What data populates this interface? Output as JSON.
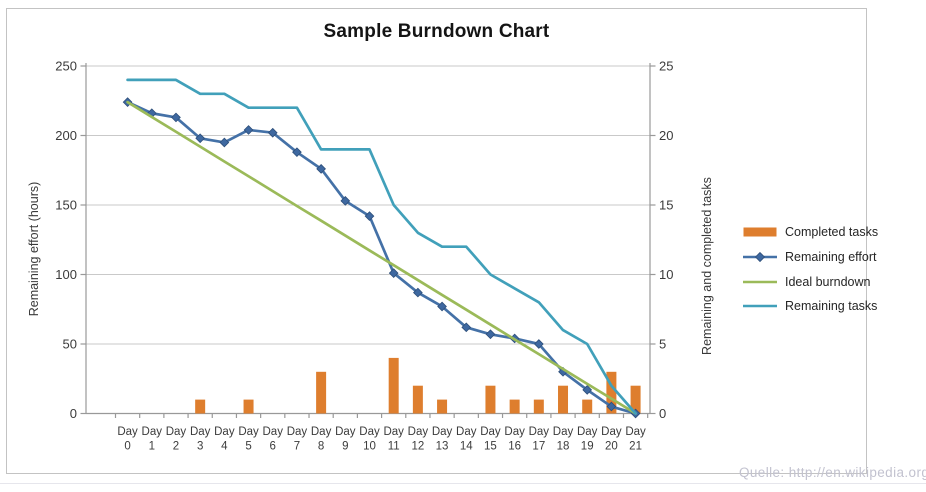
{
  "title": "Sample Burndown Chart",
  "watermark": "Quelle: http://en.wikipedia.org",
  "colors": {
    "completed_tasks": "#de7e2e",
    "remaining_effort": "#4471a7",
    "remaining_effort_marker": "#3e68a0",
    "ideal_burndown": "#9bba59",
    "remaining_tasks": "#41a0ba",
    "gridline": "#c9c9c9",
    "axis_line": "#999999",
    "tick_text": "#3b3b3b",
    "title_text": "#141414",
    "frame_border": "#c3c3c3",
    "watermark_text": "#c2c2cf"
  },
  "chart_data": {
    "type": "combo",
    "title": "Sample Burndown Chart",
    "grid": true,
    "legend_position": "right",
    "x_label_prefix": "Day",
    "categories": [
      0,
      1,
      2,
      3,
      4,
      5,
      6,
      7,
      8,
      9,
      10,
      11,
      12,
      13,
      14,
      15,
      16,
      17,
      18,
      19,
      20,
      21
    ],
    "left_axis": {
      "label": "Remaining effort (hours)",
      "min": 0,
      "max": 250,
      "step": 50,
      "ticks": [
        0,
        50,
        100,
        150,
        200,
        250
      ]
    },
    "right_axis": {
      "label": "Remaining and completed tasks",
      "min": 0,
      "max": 25,
      "step": 5,
      "ticks": [
        0,
        5,
        10,
        15,
        20,
        25
      ]
    },
    "series": [
      {
        "name": "Completed tasks",
        "type": "bar",
        "axis": "right",
        "color": "#de7e2e",
        "values": [
          0,
          0,
          0,
          1,
          0,
          1,
          0,
          0,
          3,
          0,
          0,
          4,
          2,
          1,
          0,
          2,
          1,
          1,
          2,
          1,
          3,
          2
        ]
      },
      {
        "name": "Remaining effort",
        "type": "line",
        "marker": "diamond",
        "axis": "left",
        "color": "#4471a7",
        "values": [
          224,
          216,
          213,
          198,
          195,
          204,
          202,
          188,
          176,
          153,
          142,
          101,
          87,
          77,
          62,
          57,
          54,
          50,
          30,
          17,
          5,
          0
        ]
      },
      {
        "name": "Ideal burndown",
        "type": "line",
        "marker": "none",
        "axis": "left",
        "color": "#9bba59",
        "values": [
          224,
          213.3,
          202.7,
          192,
          181.3,
          170.7,
          160,
          149.3,
          138.7,
          128,
          117.3,
          106.7,
          96,
          85.3,
          74.7,
          64,
          53.3,
          42.7,
          32,
          21.3,
          10.7,
          0
        ]
      },
      {
        "name": "Remaining tasks",
        "type": "line",
        "marker": "none",
        "axis": "right",
        "color": "#41a0ba",
        "values": [
          24,
          24,
          24,
          23,
          23,
          22,
          22,
          22,
          19,
          19,
          19,
          15,
          13,
          12,
          12,
          10,
          9,
          8,
          6,
          5,
          2,
          0
        ]
      }
    ]
  }
}
